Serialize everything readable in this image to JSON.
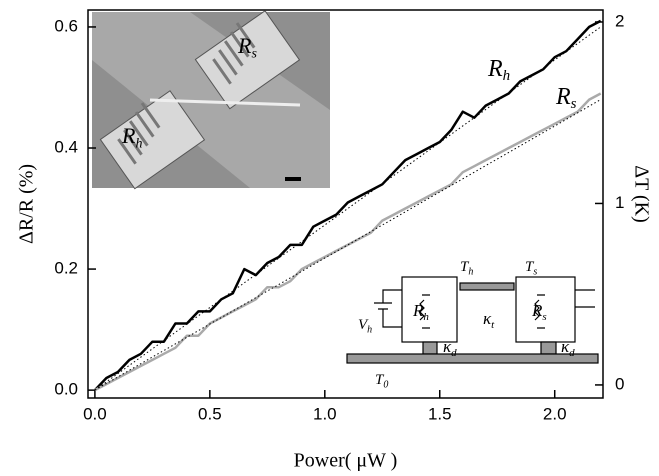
{
  "chart_data": {
    "type": "line",
    "xlabel": "Power( μW )",
    "ylabel": "ΔR/R  (%)",
    "y2label": "ΔT (K)",
    "x": [
      0,
      0.05,
      0.1,
      0.15,
      0.2,
      0.25,
      0.3,
      0.35,
      0.4,
      0.45,
      0.5,
      0.55,
      0.6,
      0.65,
      0.7,
      0.75,
      0.8,
      0.85,
      0.9,
      0.95,
      1.0,
      1.05,
      1.1,
      1.15,
      1.2,
      1.25,
      1.3,
      1.35,
      1.4,
      1.45,
      1.5,
      1.55,
      1.6,
      1.65,
      1.7,
      1.75,
      1.8,
      1.85,
      1.9,
      1.95,
      2.0,
      2.05,
      2.1,
      2.15,
      2.2
    ],
    "series": [
      {
        "color": "#000000",
        "values": [
          0.0,
          0.02,
          0.03,
          0.05,
          0.06,
          0.08,
          0.08,
          0.11,
          0.11,
          0.13,
          0.13,
          0.15,
          0.16,
          0.2,
          0.19,
          0.21,
          0.22,
          0.24,
          0.24,
          0.27,
          0.28,
          0.29,
          0.31,
          0.32,
          0.33,
          0.34,
          0.36,
          0.38,
          0.39,
          0.4,
          0.41,
          0.43,
          0.46,
          0.45,
          0.47,
          0.48,
          0.49,
          0.51,
          0.52,
          0.53,
          0.55,
          0.56,
          0.58,
          0.6,
          0.61
        ]
      },
      {
        "color": "#aaaaaa",
        "values": [
          0,
          0.01,
          0.02,
          0.03,
          0.04,
          0.05,
          0.06,
          0.07,
          0.09,
          0.09,
          0.11,
          0.12,
          0.13,
          0.14,
          0.15,
          0.17,
          0.17,
          0.18,
          0.2,
          0.21,
          0.22,
          0.23,
          0.24,
          0.25,
          0.26,
          0.28,
          0.29,
          0.3,
          0.31,
          0.32,
          0.33,
          0.34,
          0.36,
          0.37,
          0.38,
          0.39,
          0.4,
          0.41,
          0.42,
          0.43,
          0.44,
          0.45,
          0.46,
          0.48,
          0.49
        ]
      },
      {
        "color": "#000000",
        "style": "dotted",
        "x": [
          0,
          2.2
        ],
        "values": [
          0,
          0.6
        ]
      },
      {
        "color": "#000000",
        "style": "dotted",
        "x": [
          0,
          2.2
        ],
        "values": [
          0,
          0.48
        ]
      }
    ],
    "xlim": [
      -0.03,
      2.21
    ],
    "ylim": [
      -0.013,
      0.628
    ],
    "y2lim": [
      -0.072,
      2.066
    ],
    "xticks": [
      {
        "value": 0,
        "label": "0.0"
      },
      0.5,
      {
        "value": 1,
        "label": "1.0"
      },
      1.5,
      {
        "value": 2,
        "label": "2.0"
      }
    ],
    "yticks": [
      {
        "value": 0,
        "label": "0.0"
      },
      0.2,
      0.4,
      0.6
    ],
    "y2ticks": [
      0,
      1,
      2
    ],
    "annotations": [
      {
        "text": "R",
        "sub": "h"
      },
      {
        "text": "R",
        "sub": "s"
      }
    ],
    "inset_photo": {
      "labels": [
        {
          "text": "R",
          "sub": "s"
        },
        {
          "text": "R",
          "sub": "h"
        }
      ]
    },
    "inset_diagram": {
      "labels": [
        {
          "text": "T",
          "sub": "h"
        },
        {
          "text": "T",
          "sub": "s"
        },
        {
          "text": "R",
          "sub": "h"
        },
        {
          "text": "R",
          "sub": "s"
        },
        {
          "text": "κ",
          "sub": "t"
        },
        {
          "text": "V",
          "sub": "h"
        },
        {
          "text": "κ",
          "sub": "d"
        },
        {
          "text": "κ",
          "sub": "d"
        },
        {
          "text": "T",
          "sub": "0"
        }
      ]
    }
  }
}
